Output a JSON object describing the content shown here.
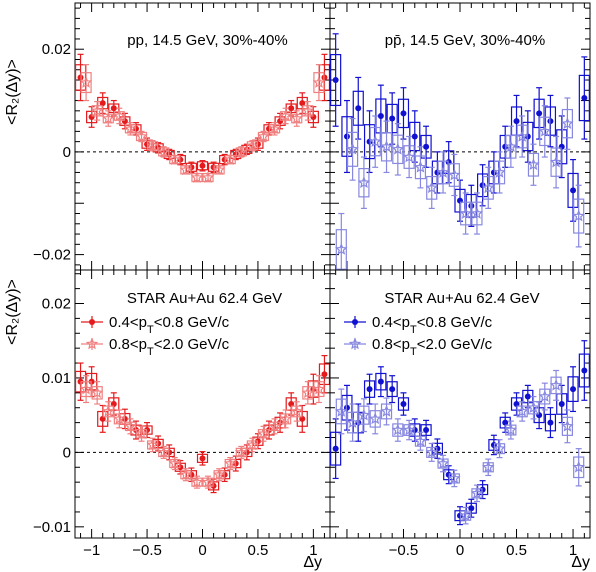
{
  "figure": {
    "ylabel": "<R₂(Δy)>",
    "xlabel": "Δy",
    "colors": {
      "red_low": "#e41a1c",
      "red_high": "#f08080",
      "blue_low": "#1010d0",
      "blue_high": "#8888e0",
      "axis": "#000000",
      "zero_line": "#000000"
    }
  },
  "chart_data": [
    {
      "type": "scatter",
      "panel": "top-left",
      "annotation": "pp, 14.5 GeV, 30%-40%",
      "x_ticks": [],
      "y_ticks": [
        -0.02,
        0,
        0.02
      ],
      "xlim": [
        -1.15,
        1.15
      ],
      "ylim": [
        -0.023,
        0.029
      ],
      "grid": false,
      "series": [
        {
          "style": "dot",
          "color": "red_low",
          "x": [
            -1.1,
            -1.0,
            -0.9,
            -0.8,
            -0.7,
            -0.6,
            -0.5,
            -0.4,
            -0.3,
            -0.2,
            -0.1,
            0.0,
            0.1,
            0.2,
            0.3,
            0.4,
            0.5,
            0.6,
            0.7,
            0.8,
            0.9,
            1.0,
            1.1
          ],
          "y": [
            0.0145,
            0.0068,
            0.0095,
            0.0085,
            0.006,
            0.0045,
            0.0015,
            0.0008,
            -0.0005,
            -0.0015,
            -0.003,
            -0.0027,
            -0.003,
            -0.0015,
            -0.0005,
            0.0005,
            0.0015,
            0.0045,
            0.006,
            0.0085,
            0.0095,
            0.0068,
            0.0145
          ],
          "err": [
            0.0045,
            0.002,
            0.002,
            0.0015,
            0.0015,
            0.0012,
            0.0012,
            0.001,
            0.001,
            0.001,
            0.001,
            0.001,
            0.001,
            0.001,
            0.001,
            0.001,
            0.0012,
            0.0012,
            0.0015,
            0.0015,
            0.002,
            0.002,
            0.0045
          ]
        },
        {
          "style": "star",
          "color": "red_high",
          "x": [
            -1.05,
            -0.95,
            -0.85,
            -0.75,
            -0.65,
            -0.55,
            -0.45,
            -0.35,
            -0.25,
            -0.15,
            -0.05,
            0.05,
            0.15,
            0.25,
            0.35,
            0.45,
            0.55,
            0.65,
            0.75,
            0.85,
            0.95,
            1.05
          ],
          "y": [
            0.0135,
            0.008,
            0.0065,
            0.007,
            0.0045,
            0.003,
            0.0012,
            0.0,
            -0.0015,
            -0.0035,
            -0.005,
            -0.005,
            -0.0035,
            -0.0015,
            0.0,
            0.0012,
            0.003,
            0.0045,
            0.007,
            0.0065,
            0.008,
            0.0135
          ],
          "err": [
            0.0035,
            0.0018,
            0.0015,
            0.0015,
            0.0012,
            0.001,
            0.001,
            0.001,
            0.0008,
            0.0008,
            0.0008,
            0.0008,
            0.0008,
            0.0008,
            0.001,
            0.001,
            0.001,
            0.0012,
            0.0015,
            0.0015,
            0.0018,
            0.0035
          ]
        }
      ]
    },
    {
      "type": "scatter",
      "panel": "top-right",
      "annotation": "pp̄, 14.5 GeV, 30%-40%",
      "x_ticks": [],
      "y_ticks": [],
      "xlim": [
        -1.15,
        1.15
      ],
      "ylim": [
        -0.023,
        0.029
      ],
      "grid": false,
      "series": [
        {
          "style": "dot",
          "color": "blue_low",
          "x": [
            -1.1,
            -1.0,
            -0.9,
            -0.8,
            -0.7,
            -0.6,
            -0.5,
            -0.4,
            -0.3,
            -0.2,
            -0.1,
            0.0,
            0.1,
            0.2,
            0.3,
            0.4,
            0.5,
            0.6,
            0.7,
            0.8,
            0.9,
            1.0,
            1.1
          ],
          "y": [
            0.014,
            0.003,
            0.0085,
            0.002,
            0.007,
            0.0065,
            0.0075,
            0.003,
            0.001,
            -0.004,
            -0.002,
            -0.0095,
            -0.0105,
            -0.0065,
            -0.004,
            0.001,
            0.006,
            0.003,
            0.0075,
            0.006,
            0.001,
            -0.0075,
            0.0105
          ],
          "err": [
            0.009,
            0.007,
            0.006,
            0.006,
            0.006,
            0.005,
            0.005,
            0.005,
            0.004,
            0.004,
            0.004,
            0.004,
            0.004,
            0.004,
            0.004,
            0.004,
            0.005,
            0.005,
            0.005,
            0.005,
            0.006,
            0.006,
            0.008
          ]
        },
        {
          "style": "star",
          "color": "blue_high",
          "x": [
            -1.05,
            -0.95,
            -0.85,
            -0.75,
            -0.65,
            -0.55,
            -0.45,
            -0.35,
            -0.25,
            -0.15,
            -0.05,
            0.05,
            0.15,
            0.25,
            0.35,
            0.45,
            0.55,
            0.65,
            0.75,
            0.85,
            0.95,
            1.05
          ],
          "y": [
            -0.019,
            0.0005,
            -0.006,
            0.002,
            0.001,
            0.0005,
            -0.001,
            -0.003,
            -0.007,
            -0.004,
            -0.0045,
            -0.012,
            -0.012,
            -0.007,
            -0.004,
            0.001,
            0.003,
            -0.0025,
            0.004,
            -0.002,
            0.0055,
            -0.0125
          ],
          "err": [
            0.007,
            0.006,
            0.005,
            0.005,
            0.005,
            0.005,
            0.004,
            0.004,
            0.004,
            0.004,
            0.004,
            0.004,
            0.004,
            0.004,
            0.004,
            0.004,
            0.004,
            0.004,
            0.005,
            0.005,
            0.005,
            0.006
          ]
        }
      ]
    },
    {
      "type": "scatter",
      "panel": "bottom-left",
      "annotation": "STAR Au+Au 62.4 GeV",
      "legend": [
        "0.4<p_T<0.8 GeV/c",
        "0.8<p_T<2.0 GeV/c"
      ],
      "x_ticks": [
        -1,
        -0.5,
        0,
        0.5,
        1
      ],
      "y_ticks": [
        -0.01,
        0,
        0.01,
        0.02
      ],
      "xlim": [
        -1.15,
        1.15
      ],
      "ylim": [
        -0.0115,
        0.0245
      ],
      "grid": false,
      "series": [
        {
          "name": "0.4<p_T<0.8 GeV/c",
          "style": "dot",
          "color": "red_low",
          "x": [
            -1.1,
            -1.0,
            -0.9,
            -0.8,
            -0.7,
            -0.6,
            -0.5,
            -0.4,
            -0.3,
            -0.2,
            -0.1,
            0.0,
            0.1,
            0.2,
            0.3,
            0.4,
            0.5,
            0.6,
            0.7,
            0.8,
            0.9,
            1.0,
            1.1
          ],
          "y": [
            0.0095,
            0.0095,
            0.0045,
            0.0065,
            0.0045,
            0.003,
            0.003,
            0.0012,
            0.0,
            -0.002,
            -0.003,
            -0.0008,
            -0.0045,
            -0.003,
            -0.0015,
            0.0,
            0.0015,
            0.003,
            0.004,
            0.0065,
            0.0045,
            0.0085,
            0.0105
          ],
          "err": [
            0.0025,
            0.002,
            0.0018,
            0.0015,
            0.0013,
            0.0012,
            0.001,
            0.001,
            0.001,
            0.0009,
            0.0009,
            0.0009,
            0.0009,
            0.0009,
            0.001,
            0.001,
            0.001,
            0.0012,
            0.0013,
            0.0015,
            0.0018,
            0.002,
            0.0025
          ]
        },
        {
          "name": "0.8<p_T<2.0 GeV/c",
          "style": "star",
          "color": "red_high",
          "x": [
            -1.05,
            -0.95,
            -0.85,
            -0.75,
            -0.65,
            -0.55,
            -0.45,
            -0.35,
            -0.25,
            -0.15,
            -0.05,
            0.05,
            0.15,
            0.25,
            0.35,
            0.45,
            0.55,
            0.65,
            0.75,
            0.85,
            0.95,
            1.05
          ],
          "y": [
            0.0085,
            0.008,
            0.0055,
            0.0045,
            0.0035,
            0.0025,
            0.001,
            0.0,
            -0.0015,
            -0.003,
            -0.004,
            -0.004,
            -0.003,
            -0.0015,
            0.0,
            0.001,
            0.0025,
            0.0035,
            0.0045,
            0.0055,
            0.008,
            0.0085
          ],
          "err": [
            0.0018,
            0.0015,
            0.0013,
            0.0012,
            0.001,
            0.001,
            0.0009,
            0.0008,
            0.0008,
            0.0008,
            0.0008,
            0.0008,
            0.0008,
            0.0008,
            0.0008,
            0.0009,
            0.001,
            0.001,
            0.0012,
            0.0013,
            0.0015,
            0.0018
          ]
        }
      ]
    },
    {
      "type": "scatter",
      "panel": "bottom-right",
      "annotation": "STAR Au+Au 62.4 GeV",
      "legend": [
        "0.4<p_T<0.8 GeV/c",
        "0.8<p_T<2.0 GeV/c"
      ],
      "x_ticks": [
        -0.5,
        0,
        0.5,
        1
      ],
      "y_ticks": [],
      "xlim": [
        -1.15,
        1.15
      ],
      "ylim": [
        -0.0115,
        0.0245
      ],
      "grid": false,
      "series": [
        {
          "name": "0.4<p_T<0.8 GeV/c",
          "style": "dot",
          "color": "blue_low",
          "x": [
            -1.1,
            -1.0,
            -0.9,
            -0.8,
            -0.7,
            -0.6,
            -0.5,
            -0.4,
            -0.3,
            -0.2,
            -0.1,
            0.0,
            0.1,
            0.2,
            0.3,
            0.4,
            0.5,
            0.6,
            0.7,
            0.8,
            0.9,
            1.0,
            1.1
          ],
          "y": [
            0.0005,
            0.006,
            0.004,
            0.0085,
            0.0095,
            0.0085,
            0.0065,
            0.003,
            0.003,
            0.0005,
            -0.003,
            -0.0085,
            -0.0075,
            -0.005,
            0.001,
            0.004,
            0.0065,
            0.0075,
            0.005,
            0.004,
            0.0065,
            0.0085,
            0.011
          ],
          "err": [
            0.004,
            0.003,
            0.0025,
            0.002,
            0.002,
            0.0018,
            0.0015,
            0.0015,
            0.0013,
            0.0013,
            0.0012,
            0.0012,
            0.0012,
            0.0012,
            0.0013,
            0.0013,
            0.0015,
            0.0015,
            0.0018,
            0.002,
            0.0025,
            0.003,
            0.004
          ]
        },
        {
          "name": "0.8<p_T<2.0 GeV/c",
          "style": "star",
          "color": "blue_high",
          "x": [
            -1.05,
            -0.95,
            -0.85,
            -0.75,
            -0.65,
            -0.55,
            -0.45,
            -0.35,
            -0.25,
            -0.15,
            -0.05,
            0.05,
            0.15,
            0.25,
            0.35,
            0.45,
            0.55,
            0.65,
            0.75,
            0.85,
            0.95,
            1.05
          ],
          "y": [
            0.0055,
            0.004,
            0.005,
            0.0045,
            0.0055,
            0.003,
            0.003,
            0.0015,
            0.0,
            -0.0015,
            -0.0035,
            -0.0085,
            -0.0055,
            -0.002,
            0.0005,
            0.003,
            0.0055,
            0.006,
            0.0075,
            0.009,
            0.0035,
            -0.002
          ],
          "err": [
            0.003,
            0.0025,
            0.0022,
            0.002,
            0.0018,
            0.0015,
            0.0013,
            0.0012,
            0.0012,
            0.0011,
            0.0011,
            0.0011,
            0.0011,
            0.0011,
            0.0012,
            0.0012,
            0.0013,
            0.0015,
            0.0018,
            0.002,
            0.0022,
            0.0025
          ]
        }
      ]
    }
  ]
}
